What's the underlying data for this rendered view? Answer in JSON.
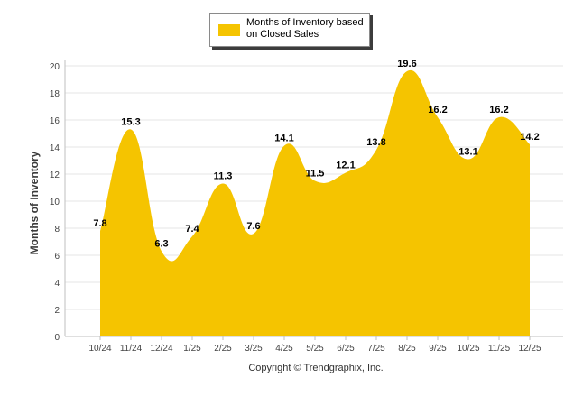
{
  "chart_data": {
    "type": "area",
    "title": "",
    "xlabel": "",
    "ylabel": "Months of Inventory",
    "ylim": [
      0,
      20
    ],
    "yticks": [
      0,
      2,
      4,
      6,
      8,
      10,
      12,
      14,
      16,
      18,
      20
    ],
    "grid": true,
    "legend_position": "top-center",
    "categories": [
      "10/24",
      "11/24",
      "12/24",
      "1/25",
      "2/25",
      "3/25",
      "4/25",
      "5/25",
      "6/25",
      "7/25",
      "8/25",
      "9/25",
      "10/25",
      "11/25",
      "12/25"
    ],
    "series": [
      {
        "name": "Months of Inventory based\non Closed Sales",
        "values": [
          7.8,
          15.3,
          6.3,
          7.4,
          11.3,
          7.6,
          14.1,
          11.5,
          12.1,
          13.8,
          19.6,
          16.2,
          13.1,
          16.2,
          14.2
        ],
        "labels": [
          "7.8",
          "15.3",
          "6.3",
          "7.4",
          "11.3",
          "7.6",
          "14.1",
          "11.5",
          "12.1",
          "13.8",
          "19.6",
          "16.2",
          "13.1",
          "16.2",
          "14.2"
        ],
        "color": "#f5c400"
      }
    ]
  },
  "colors": {
    "grid": "#e6e6e6",
    "axis": "#bfbfbf",
    "tick_text": "#444444",
    "data_label": "#000000"
  },
  "footer": {
    "copyright": "Copyright © Trendgraphix, Inc."
  }
}
